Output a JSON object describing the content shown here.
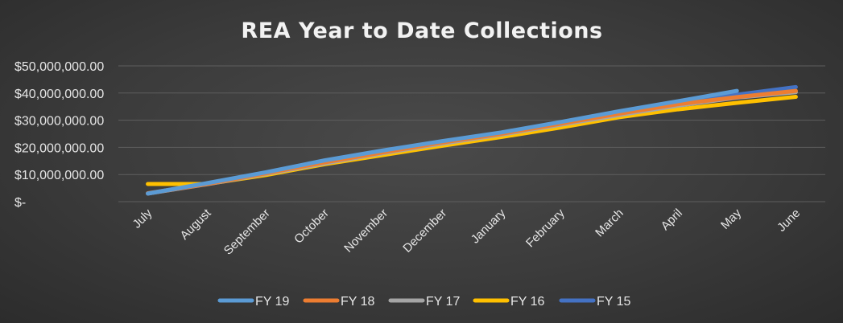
{
  "chart_data": {
    "type": "line",
    "title": "REA Year to Date Collections",
    "xlabel": "",
    "ylabel": "",
    "categories": [
      "July",
      "August",
      "September",
      "October",
      "November",
      "December",
      "January",
      "February",
      "March",
      "April",
      "May",
      "June"
    ],
    "ylim": [
      0,
      50000000
    ],
    "yticks": [
      0,
      10000000,
      20000000,
      30000000,
      40000000,
      50000000
    ],
    "ytick_labels": [
      "$-",
      "$10,000,000.00",
      "$20,000,000.00",
      "$30,000,000.00",
      "$40,000,000.00",
      "$50,000,000.00"
    ],
    "grid": true,
    "legend_position": "bottom",
    "series": [
      {
        "name": "FY 19",
        "color": "#5b9bd5",
        "values": [
          3000000,
          6800000,
          10800000,
          15200000,
          18900000,
          22300000,
          25500000,
          29300000,
          33300000,
          37000000,
          40800000,
          null
        ]
      },
      {
        "name": "FY 18",
        "color": "#ed7d31",
        "values": [
          3100000,
          6500000,
          10400000,
          14500000,
          18200000,
          21800000,
          25000000,
          28700000,
          32400000,
          35900000,
          38500000,
          40800000
        ]
      },
      {
        "name": "FY 17",
        "color": "#a5a5a5",
        "values": [
          3000000,
          6400000,
          10200000,
          14100000,
          17900000,
          21400000,
          24700000,
          28300000,
          31900000,
          35400000,
          38300000,
          40300000
        ]
      },
      {
        "name": "FY 16",
        "color": "#ffc000",
        "values": [
          6500000,
          6500000,
          9800000,
          13800000,
          17200000,
          20600000,
          23800000,
          27300000,
          31100000,
          34000000,
          36400000,
          38600000
        ]
      },
      {
        "name": "FY 15",
        "color": "#4472c4",
        "values": [
          3000000,
          6500000,
          10400000,
          14700000,
          18400000,
          21900000,
          25100000,
          28800000,
          32600000,
          36200000,
          39400000,
          42200000
        ]
      }
    ]
  }
}
